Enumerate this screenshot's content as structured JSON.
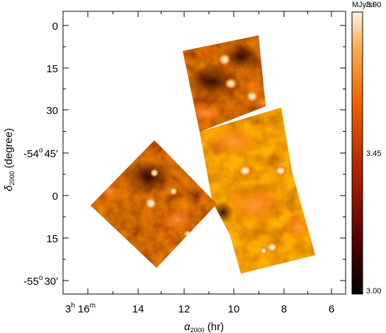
{
  "figure": {
    "ra_ticks": [
      {
        "main": "3",
        "sup": "h",
        "mid": "16",
        "sup2": "m"
      },
      {
        "main": "14"
      },
      {
        "main": "12"
      },
      {
        "main": "10"
      },
      {
        "main": "8"
      },
      {
        "main": "6"
      }
    ],
    "dec_ticks": [
      {
        "main": "0"
      },
      {
        "main": "15"
      },
      {
        "main": "30"
      },
      {
        "main": "-54",
        "sup": "o",
        "mid": "45'"
      },
      {
        "main": "0"
      },
      {
        "main": "15"
      },
      {
        "main": "-55",
        "sup": "o",
        "mid": "30'"
      }
    ],
    "x_axis_title": {
      "symbol": "α",
      "sub": "2000",
      "rest": " (hr)"
    },
    "y_axis_title": {
      "symbol": "δ",
      "sub": "2000",
      "rest": " (degree)"
    },
    "colorbar": {
      "unit": "MJy/sr",
      "labels": [
        "3.90",
        "3.45",
        "3.00"
      ],
      "colors": [
        "#000000",
        "#5a0000",
        "#b32400",
        "#f06a00",
        "#ffae55",
        "#fff3e6"
      ]
    }
  }
}
